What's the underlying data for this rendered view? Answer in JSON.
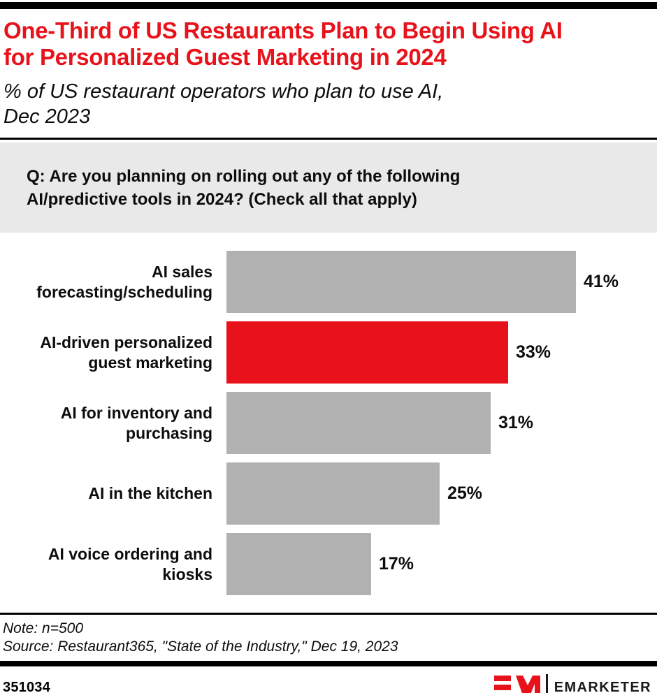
{
  "colors": {
    "accent_red": "#e8121b",
    "bar_gray": "#b1b1b1",
    "question_box_bg": "#e9e9e9",
    "rule_black": "#000000"
  },
  "header": {
    "title_lines": [
      "One-Third of US Restaurants Plan to Begin Using AI",
      "for Personalized Guest Marketing in 2024"
    ],
    "subtitle_lines": [
      "% of US restaurant operators who plan to use AI,",
      "Dec 2023"
    ]
  },
  "question": {
    "lines": [
      "Q: Are you planning on rolling out any of the following",
      "AI/predictive tools in 2024? (Check all that apply)"
    ]
  },
  "chart_data": {
    "type": "bar",
    "orientation": "horizontal",
    "title": "One-Third of US Restaurants Plan to Begin Using AI for Personalized Guest Marketing in 2024",
    "subtitle": "% of US restaurant operators who plan to use AI, Dec 2023",
    "categories": [
      "AI sales forecasting/scheduling",
      "AI-driven personalized guest marketing",
      "AI for inventory and purchasing",
      "AI in the kitchen",
      "AI voice ordering and kiosks"
    ],
    "category_lines": [
      [
        "AI sales",
        "forecasting/scheduling"
      ],
      [
        "AI-driven personalized",
        "guest marketing"
      ],
      [
        "AI for inventory and",
        "purchasing"
      ],
      [
        "AI in the kitchen"
      ],
      [
        "AI voice ordering and",
        "kiosks"
      ]
    ],
    "values": [
      41,
      33,
      31,
      25,
      17
    ],
    "value_labels": [
      "41%",
      "33%",
      "31%",
      "25%",
      "17%"
    ],
    "unit": "%",
    "highlight_index": 1,
    "bar_color_default": "#b1b1b1",
    "bar_color_highlight": "#e8121b",
    "xlim": [
      0,
      50
    ],
    "grid": false,
    "legend": "none"
  },
  "footer": {
    "note": "Note: n=500",
    "source": "Source: Restaurant365, \"State of the Industry,\" Dec 19, 2023",
    "chart_id": "351034",
    "brand_name": "EMARKETER"
  }
}
